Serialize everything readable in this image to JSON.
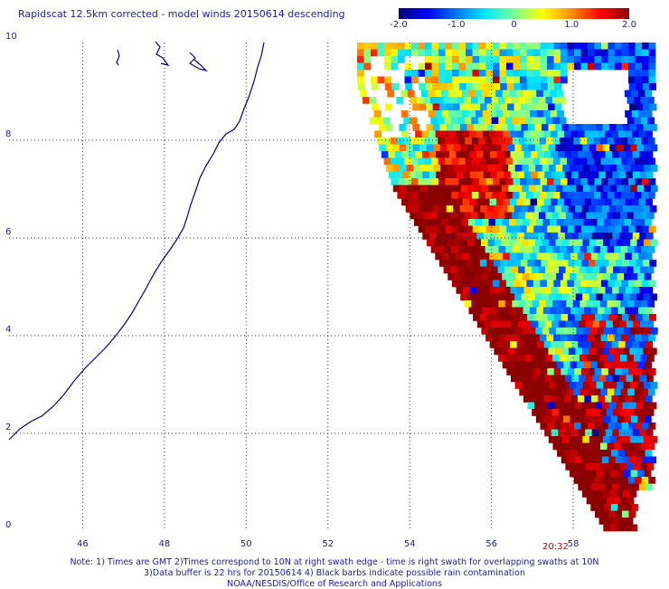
{
  "title": "Rapidscat 12.5km corrected - model winds 20150614 descending",
  "colorbar": {
    "ticks": [
      "-2.0",
      "-1.0",
      "0",
      "1.0",
      "2.0"
    ],
    "tick_values": [
      -2.0,
      -1.0,
      0,
      1.0,
      2.0
    ],
    "stops": [
      "#000078",
      "#0000ff",
      "#0078ff",
      "#00e6ff",
      "#78ff96",
      "#ffff00",
      "#ff8c00",
      "#ff0000",
      "#8b0000"
    ]
  },
  "map": {
    "lon_range": [
      44.2,
      59.9
    ],
    "lat_range": [
      0,
      10
    ],
    "x_ticks": [
      "46",
      "48",
      "50",
      "52",
      "54",
      "56",
      "58"
    ],
    "x_tick_values": [
      46,
      48,
      50,
      52,
      54,
      56,
      58
    ],
    "y_ticks": [
      "0",
      "2",
      "4",
      "6",
      "8",
      "10"
    ],
    "y_tick_values": [
      0,
      2,
      4,
      6,
      8,
      10
    ],
    "grid": true,
    "coastline_color": "#00008b"
  },
  "swath_time": "20:32",
  "notes": {
    "line1": "Note: 1) Times are GMT 2)Times correspond to 10N at right swath edge - time is right swath for overlapping swaths at 10N",
    "line2": "3)Data buffer is 22 hrs for 20150614 4) Black barbs indicate possible rain contamination",
    "line3": "NOAA/NESDIS/Office of Research and Applications"
  }
}
